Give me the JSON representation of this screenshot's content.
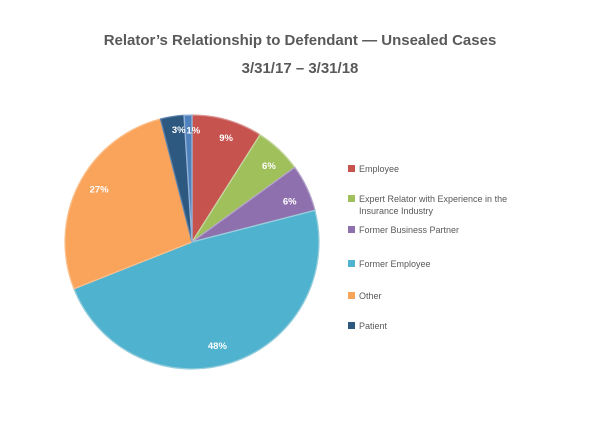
{
  "title": {
    "line1": "Relator’s Relationship to Defendant — Unsealed Cases",
    "line2": "3/31/17 – 3/31/18"
  },
  "chart_data": {
    "type": "pie",
    "title": "Relator’s Relationship to Defendant — Unsealed Cases 3/31/17 – 3/31/18",
    "categories": [
      "Employee",
      "Expert Relator with Experience in the Insurance Industry",
      "Former Business Partner",
      "Former Employee",
      "Other",
      "Patient",
      ""
    ],
    "values": [
      9,
      6,
      6,
      48,
      27,
      3,
      1
    ],
    "unit": "percent",
    "data_labels": [
      "9%",
      "6%",
      "6%",
      "48%",
      "27%",
      "3%",
      "1%"
    ],
    "colors": [
      "#C6534E",
      "#A0C05C",
      "#8F70AE",
      "#4FB2CE",
      "#F9A35B",
      "#2D5981",
      "#4F81BD"
    ],
    "stroke_colors": [
      "#DA9694",
      "#C6D6A0",
      "#B4A5C9",
      "#99CEDD",
      "#FBC08C",
      "#5E83AC",
      "#95B3D7"
    ],
    "start_angle_deg": 0,
    "direction": "clockwise",
    "grid": false,
    "legend_position": "right",
    "data_label_color": "#ffffff"
  },
  "legend": {
    "items": [
      {
        "label": "Employee",
        "color": "#C6534E"
      },
      {
        "label": "Expert Relator with Experience in the Insurance Industry",
        "color": "#A0C05C"
      },
      {
        "label": "Former Business Partner",
        "color": "#8F70AE"
      },
      {
        "label": "Former Employee",
        "color": "#4FB2CE"
      },
      {
        "label": "Other",
        "color": "#F9A35B"
      },
      {
        "label": "Patient",
        "color": "#2D5981"
      }
    ]
  }
}
